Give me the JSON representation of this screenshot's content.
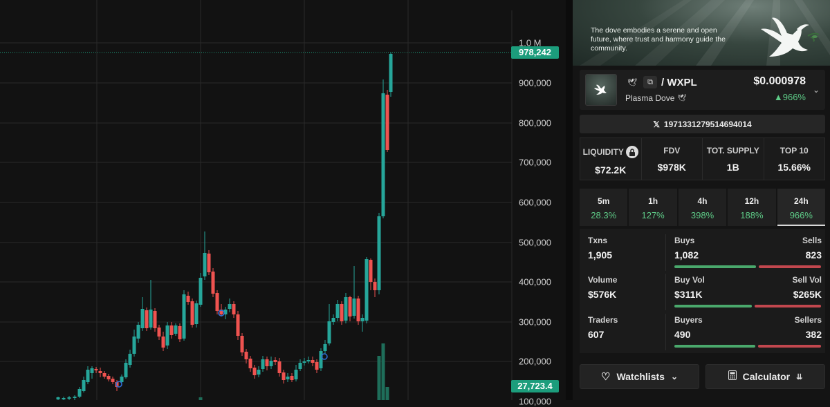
{
  "chart": {
    "axis_ticks": [
      "1.0 M",
      "900,000",
      "800,000",
      "700,000",
      "600,000",
      "500,000",
      "400,000",
      "300,000",
      "200,000",
      "100,000"
    ],
    "current_price_tag": "978,242",
    "volume_tag": "27,723.4",
    "up_color": "#26a69a",
    "down_color": "#ef5350",
    "tag_color": "#1c9d7c"
  },
  "banner": {
    "text": "The dove embodies a serene and open future, where trust and harmony guide the community."
  },
  "token": {
    "symbol_prefix": "/ ",
    "symbol": "WXPL",
    "name": "Plasma Dove",
    "price": "$0.000978",
    "change": "▲966%",
    "logo_icon": "dove-icon",
    "copy_icon": "copy-icon"
  },
  "address": {
    "icon": "x-icon",
    "value": "1971331279514694014"
  },
  "stats": [
    {
      "label": "LIQUIDITY",
      "value": "$72.2K",
      "icon": "lock-icon"
    },
    {
      "label": "FDV",
      "value": "$978K"
    },
    {
      "label": "TOT. SUPPLY",
      "value": "1B"
    },
    {
      "label": "TOP 10",
      "value": "15.66%"
    }
  ],
  "timeframes": [
    {
      "label": "5m",
      "value": "28.3%"
    },
    {
      "label": "1h",
      "value": "127%"
    },
    {
      "label": "4h",
      "value": "398%"
    },
    {
      "label": "12h",
      "value": "188%"
    },
    {
      "label": "24h",
      "value": "966%",
      "active": true
    }
  ],
  "metrics": {
    "txns": {
      "label": "Txns",
      "value": "1,905"
    },
    "buys": {
      "label": "Buys",
      "value": "1,082"
    },
    "sells": {
      "label": "Sells",
      "value": "823"
    },
    "volume": {
      "label": "Volume",
      "value": "$576K"
    },
    "buy_vol": {
      "label": "Buy Vol",
      "value": "$311K"
    },
    "sell_vol": {
      "label": "Sell Vol",
      "value": "$265K"
    },
    "traders": {
      "label": "Traders",
      "value": "607"
    },
    "buyers": {
      "label": "Buyers",
      "value": "490"
    },
    "sellers": {
      "label": "Sellers",
      "value": "382"
    },
    "buy_share": 0.568,
    "buy_vol_share": 0.54,
    "buyer_share": 0.562
  },
  "buttons": {
    "watchlists": "Watchlists",
    "calculator": "Calculator"
  }
}
